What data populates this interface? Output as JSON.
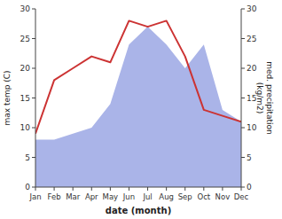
{
  "chart_data": {
    "type": "line",
    "categories": [
      "Jan",
      "Feb",
      "Mar",
      "Apr",
      "May",
      "Jun",
      "Jul",
      "Aug",
      "Sep",
      "Oct",
      "Nov",
      "Dec"
    ],
    "xlabel": "date (month)",
    "ylabel": "max temp (C)",
    "y2label": "med. precipitation\n(kg/m2)",
    "series": [
      {
        "type": "area",
        "color": "#aab4e8",
        "axis": "y2",
        "values": [
          8,
          8,
          9,
          10,
          14,
          24,
          27,
          24,
          20,
          24,
          13,
          11
        ]
      },
      {
        "type": "line",
        "color": "#cc3333",
        "values": [
          9,
          18,
          20,
          22,
          21,
          28,
          27,
          28,
          22,
          13,
          12,
          11
        ]
      }
    ],
    "ylim": [
      0,
      30
    ],
    "yticks": [
      0,
      5,
      10,
      15,
      20,
      25,
      30
    ],
    "y2lim": [
      0,
      30
    ],
    "y2ticks": [
      0,
      5,
      10,
      15,
      20,
      25,
      30
    ],
    "grid": false
  }
}
